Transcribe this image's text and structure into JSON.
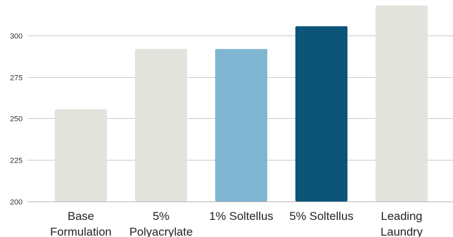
{
  "chart_data": {
    "type": "bar",
    "title": "",
    "xlabel": "",
    "ylabel": "",
    "ylim": [
      200,
      318
    ],
    "yticks": [
      200,
      225,
      250,
      275,
      300
    ],
    "grid": true,
    "categories": [
      [
        "Base",
        "Formulation"
      ],
      [
        "5%",
        "Polyacrylate"
      ],
      [
        "1% Soltellus"
      ],
      [
        "5% Soltellus"
      ],
      [
        "Leading",
        "Laundry"
      ]
    ],
    "values": [
      255.5,
      291.8,
      291.8,
      305.5,
      318
    ],
    "colors": [
      "#e2e3dc",
      "#e2e3dc",
      "#7fb6d2",
      "#0c5478",
      "#e2e3dc"
    ]
  }
}
